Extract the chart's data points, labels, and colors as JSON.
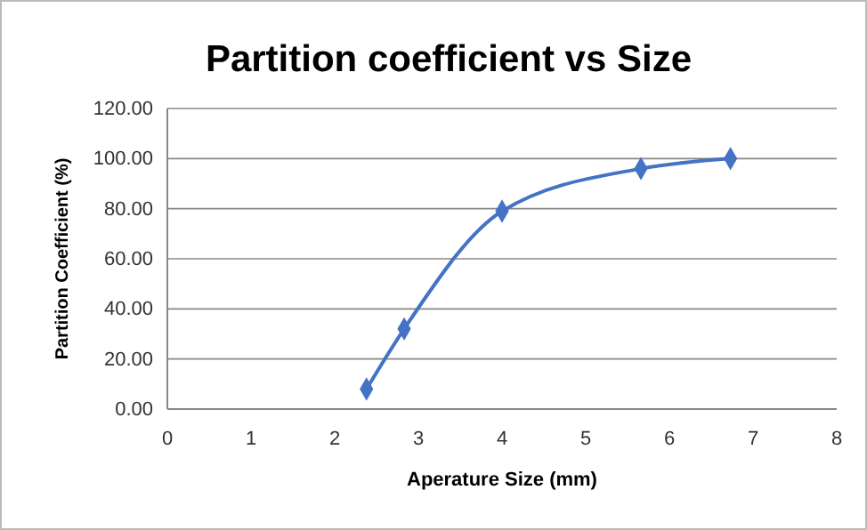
{
  "chart_data": {
    "type": "line",
    "title": "Partition coefficient vs Size",
    "xlabel": "Aperature Size (mm)",
    "ylabel": "Partition Coefficient (%)",
    "x": [
      2.38,
      2.83,
      4.0,
      5.66,
      6.73
    ],
    "series": [
      {
        "color": "#4472c4",
        "values": [
          8,
          32,
          79,
          96,
          100
        ]
      }
    ],
    "xlim": [
      0,
      8
    ],
    "xticks": [
      0,
      1,
      2,
      3,
      4,
      5,
      6,
      7,
      8
    ],
    "ylim": [
      0,
      120
    ],
    "yticks": [
      {
        "value": 0,
        "label": "0.00"
      },
      {
        "value": 20,
        "label": "20.00"
      },
      {
        "value": 40,
        "label": "40.00"
      },
      {
        "value": 60,
        "label": "60.00"
      },
      {
        "value": 80,
        "label": "80.00"
      },
      {
        "value": 100,
        "label": "100.00"
      },
      {
        "value": 120,
        "label": "120.00"
      }
    ],
    "grid": "y",
    "marker": "diamond",
    "line_style": "solid"
  }
}
